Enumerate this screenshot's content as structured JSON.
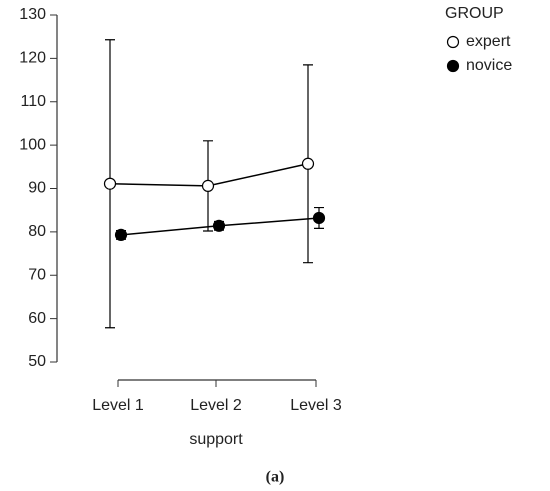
{
  "chart_data": {
    "type": "line",
    "x_label": "support",
    "categories": [
      "Level 1",
      "Level 2",
      "Level 3"
    ],
    "legend_title": "GROUP",
    "legend_position": "top-right",
    "series": [
      {
        "name": "expert",
        "color": "#ffffff",
        "values": [
          91.1,
          90.6,
          95.7
        ],
        "errors": [
          33.2,
          10.4,
          22.8
        ]
      },
      {
        "name": "novice",
        "color": "#000000",
        "values": [
          79.3,
          81.4,
          83.2
        ],
        "errors": [
          1.0,
          1.0,
          2.4
        ]
      }
    ],
    "ylim": [
      50,
      130
    ],
    "yticks": [
      50,
      60,
      70,
      80,
      90,
      100,
      110,
      120,
      130
    ],
    "caption": "(a)"
  }
}
